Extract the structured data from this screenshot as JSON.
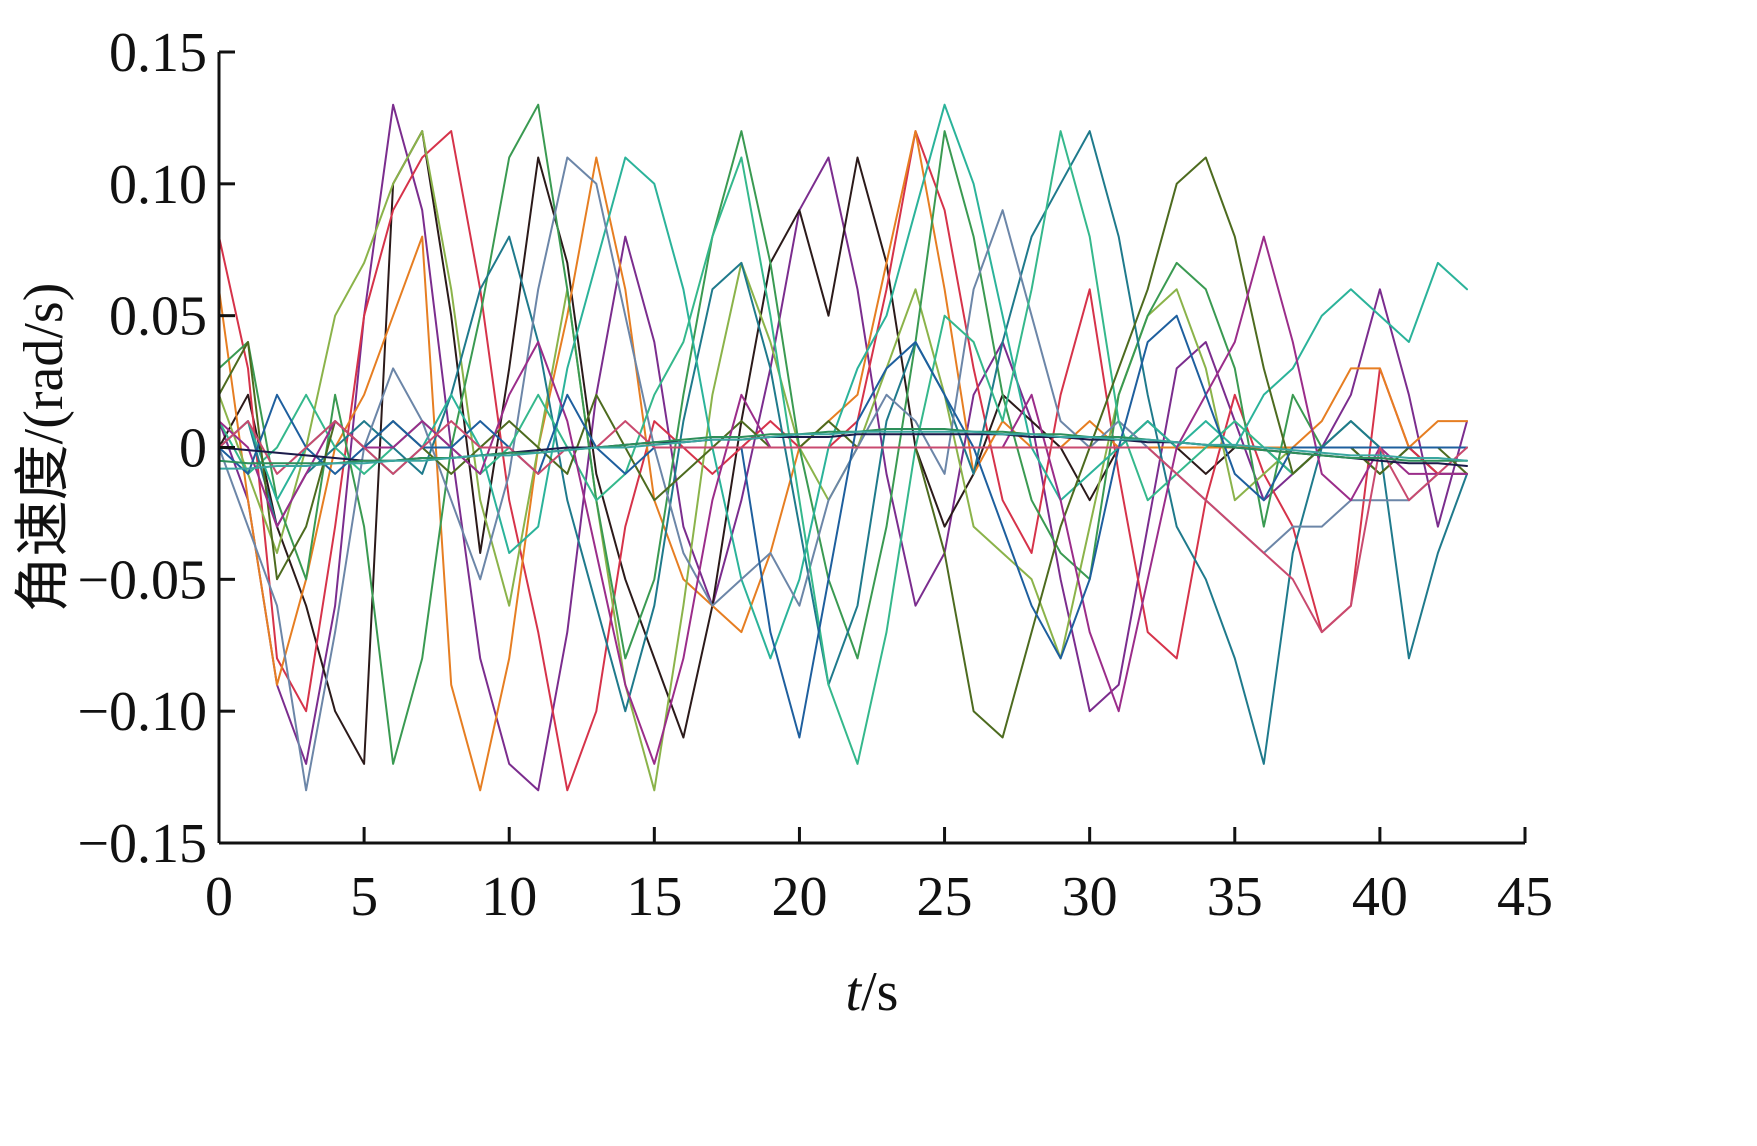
{
  "chart_data": {
    "type": "line",
    "title": "",
    "xlabel_italic": "t",
    "xlabel_rest": "/s",
    "ylabel": "角速度/(rad/s)",
    "xlim": [
      0,
      45
    ],
    "ylim": [
      -0.15,
      0.15
    ],
    "xticks": [
      0,
      5,
      10,
      15,
      20,
      25,
      30,
      35,
      40,
      45
    ],
    "xtick_labels": [
      "0",
      "5",
      "10",
      "15",
      "20",
      "25",
      "30",
      "35",
      "40",
      "45"
    ],
    "yticks": [
      -0.15,
      -0.1,
      -0.05,
      0,
      0.05,
      0.1,
      0.15
    ],
    "ytick_labels": [
      "−0.15",
      "−0.10",
      "−0.05",
      "0",
      "0.05",
      "0.10",
      "0.15"
    ],
    "grid": false,
    "legend": "none",
    "x": [
      0,
      1,
      2,
      3,
      4,
      5,
      6,
      7,
      8,
      9,
      10,
      11,
      12,
      13,
      14,
      15,
      16,
      17,
      18,
      19,
      20,
      21,
      22,
      23,
      24,
      25,
      26,
      27,
      28,
      29,
      30,
      31,
      32,
      33,
      34,
      35,
      36,
      37,
      38,
      39,
      40,
      41,
      42,
      43
    ],
    "series": [
      {
        "color": "#7b2d8e",
        "values": [
          0.01,
          -0.02,
          -0.09,
          -0.12,
          -0.06,
          0.05,
          0.13,
          0.09,
          0.0,
          -0.08,
          -0.12,
          -0.13,
          -0.07,
          0.02,
          0.08,
          0.04,
          -0.03,
          -0.06,
          -0.02,
          0.03,
          0.09,
          0.11,
          0.06,
          -0.01,
          -0.06,
          -0.04,
          0.02,
          0.04,
          0.01,
          -0.05,
          -0.1,
          -0.09,
          -0.03,
          0.03,
          0.04,
          0.01,
          -0.02,
          -0.01,
          0.0,
          0.02,
          0.06,
          0.02,
          -0.03,
          0.01
        ]
      },
      {
        "color": "#2b1a1a",
        "values": [
          0.0,
          0.02,
          -0.03,
          -0.06,
          -0.1,
          -0.12,
          0.1,
          0.12,
          0.05,
          -0.04,
          0.03,
          0.11,
          0.07,
          -0.01,
          -0.05,
          -0.08,
          -0.11,
          -0.06,
          0.01,
          0.07,
          0.09,
          0.05,
          0.11,
          0.07,
          0.0,
          -0.03,
          -0.01,
          0.02,
          0.01,
          0.0,
          -0.02,
          0.0,
          0.01,
          0.0,
          -0.01,
          0.0,
          0.0,
          -0.01,
          0.0,
          0.0,
          -0.01,
          0.0,
          -0.01,
          -0.01
        ]
      },
      {
        "color": "#d6334a",
        "values": [
          0.08,
          0.03,
          -0.08,
          -0.1,
          -0.03,
          0.05,
          0.09,
          0.11,
          0.12,
          0.06,
          -0.02,
          -0.07,
          -0.13,
          -0.1,
          -0.03,
          0.01,
          0.0,
          -0.01,
          0.0,
          0.01,
          0.0,
          0.0,
          0.01,
          0.06,
          0.12,
          0.09,
          0.03,
          -0.02,
          -0.04,
          0.02,
          0.06,
          -0.01,
          -0.07,
          -0.08,
          -0.02,
          0.02,
          -0.01,
          -0.03,
          -0.07,
          -0.06,
          0.03,
          0.0,
          -0.01,
          -0.01
        ]
      },
      {
        "color": "#e67e22",
        "values": [
          0.06,
          -0.02,
          -0.09,
          -0.05,
          0.0,
          0.02,
          0.05,
          0.08,
          -0.09,
          -0.13,
          -0.08,
          0.0,
          0.05,
          0.11,
          0.06,
          -0.02,
          -0.05,
          -0.06,
          -0.07,
          -0.04,
          0.0,
          0.01,
          0.02,
          0.07,
          0.12,
          0.06,
          -0.01,
          0.01,
          0.0,
          0.0,
          0.01,
          0.0,
          0.0,
          0.0,
          0.0,
          0.0,
          0.0,
          0.0,
          0.01,
          0.03,
          0.03,
          0.0,
          0.01,
          0.01
        ]
      },
      {
        "color": "#8bb34a",
        "values": [
          0.02,
          -0.01,
          -0.04,
          0.0,
          0.05,
          0.07,
          0.1,
          0.12,
          0.06,
          -0.02,
          -0.06,
          0.0,
          0.06,
          -0.02,
          -0.09,
          -0.13,
          -0.06,
          0.02,
          0.07,
          0.04,
          0.0,
          -0.02,
          0.0,
          0.03,
          0.06,
          0.02,
          -0.03,
          -0.04,
          -0.05,
          -0.08,
          -0.03,
          0.02,
          0.05,
          0.06,
          0.03,
          -0.02,
          -0.01,
          0.0,
          0.0,
          0.0,
          0.0,
          0.0,
          0.0,
          0.0
        ]
      },
      {
        "color": "#3a9a52",
        "values": [
          0.03,
          0.04,
          -0.02,
          -0.05,
          0.02,
          -0.03,
          -0.12,
          -0.08,
          0.0,
          0.05,
          0.11,
          0.13,
          0.06,
          -0.02,
          -0.08,
          -0.05,
          0.02,
          0.08,
          0.12,
          0.07,
          0.0,
          -0.05,
          -0.08,
          -0.03,
          0.04,
          0.12,
          0.08,
          0.02,
          -0.02,
          -0.04,
          -0.05,
          0.02,
          0.05,
          0.07,
          0.06,
          0.03,
          -0.03,
          0.02,
          0.0,
          0.01,
          0.0,
          0.0,
          0.0,
          0.0
        ]
      },
      {
        "color": "#1f7a8c",
        "values": [
          0.0,
          0.01,
          -0.03,
          -0.01,
          0.0,
          0.01,
          0.0,
          -0.01,
          0.02,
          0.06,
          0.08,
          0.04,
          -0.02,
          -0.06,
          -0.1,
          -0.06,
          0.01,
          0.06,
          0.07,
          0.03,
          -0.03,
          -0.09,
          -0.06,
          0.01,
          0.04,
          0.02,
          -0.01,
          0.04,
          0.08,
          0.1,
          0.12,
          0.08,
          0.02,
          -0.03,
          -0.05,
          -0.08,
          -0.12,
          -0.04,
          0.0,
          0.01,
          0.0,
          -0.08,
          -0.04,
          -0.01
        ]
      },
      {
        "color": "#2bb39a",
        "values": [
          0.0,
          0.01,
          -0.02,
          0.0,
          0.01,
          0.0,
          -0.01,
          0.0,
          0.02,
          0.0,
          -0.04,
          -0.03,
          0.03,
          0.07,
          0.11,
          0.1,
          0.06,
          0.0,
          -0.05,
          -0.08,
          -0.05,
          0.0,
          0.03,
          0.05,
          0.09,
          0.13,
          0.1,
          0.05,
          0.0,
          -0.02,
          -0.01,
          0.0,
          0.01,
          0.0,
          0.01,
          0.0,
          0.02,
          0.03,
          0.05,
          0.06,
          0.05,
          0.04,
          0.07,
          0.06
        ]
      },
      {
        "color": "#6c86a8",
        "values": [
          0.0,
          -0.03,
          -0.06,
          -0.13,
          -0.07,
          0.0,
          0.03,
          0.01,
          -0.02,
          -0.05,
          -0.01,
          0.06,
          0.11,
          0.1,
          0.05,
          0.0,
          -0.04,
          -0.06,
          -0.05,
          -0.04,
          -0.06,
          -0.02,
          0.0,
          0.02,
          0.01,
          -0.01,
          0.06,
          0.09,
          0.05,
          0.01,
          0.0,
          0.01,
          0.0,
          -0.01,
          -0.02,
          -0.03,
          -0.04,
          -0.03,
          -0.03,
          -0.02,
          -0.02,
          -0.02,
          -0.01,
          -0.01
        ]
      },
      {
        "color": "#35b88c",
        "values": [
          0.01,
          -0.01,
          0.0,
          0.02,
          0.0,
          -0.01,
          0.0,
          0.01,
          0.0,
          -0.01,
          0.0,
          0.02,
          0.0,
          -0.02,
          -0.01,
          0.02,
          0.04,
          0.08,
          0.11,
          0.05,
          -0.02,
          -0.09,
          -0.12,
          -0.07,
          0.0,
          0.05,
          0.04,
          0.01,
          0.06,
          0.12,
          0.08,
          0.01,
          -0.02,
          -0.01,
          0.0,
          0.01,
          0.0,
          -0.01,
          0.0,
          0.0,
          0.0,
          0.0,
          0.0,
          0.0
        ]
      },
      {
        "color": "#4d6b1f",
        "values": [
          0.02,
          0.04,
          -0.05,
          -0.03,
          0.01,
          0.0,
          0.01,
          0.0,
          -0.01,
          0.0,
          0.01,
          0.0,
          -0.01,
          0.02,
          0.0,
          -0.02,
          -0.01,
          0.0,
          0.01,
          0.0,
          0.0,
          0.01,
          0.0,
          0.0,
          0.0,
          -0.04,
          -0.1,
          -0.11,
          -0.07,
          -0.03,
          0.0,
          0.03,
          0.06,
          0.1,
          0.11,
          0.08,
          0.03,
          -0.01,
          0.0,
          0.0,
          -0.01,
          0.0,
          0.0,
          -0.01
        ]
      },
      {
        "color": "#9b2d8a",
        "values": [
          0.01,
          0.0,
          -0.03,
          -0.01,
          0.01,
          0.0,
          0.0,
          0.01,
          0.0,
          -0.01,
          0.02,
          0.04,
          0.01,
          -0.04,
          -0.09,
          -0.12,
          -0.08,
          -0.02,
          0.02,
          0.0,
          0.0,
          0.0,
          0.0,
          0.0,
          0.0,
          0.0,
          0.0,
          0.0,
          0.02,
          -0.02,
          -0.07,
          -0.1,
          -0.05,
          0.0,
          0.02,
          0.04,
          0.08,
          0.04,
          -0.01,
          -0.02,
          0.0,
          -0.01,
          -0.01,
          -0.01
        ]
      },
      {
        "color": "#1e5f9e",
        "values": [
          0.0,
          -0.01,
          0.02,
          0.0,
          -0.01,
          0.0,
          0.01,
          0.0,
          0.0,
          0.01,
          0.0,
          -0.01,
          0.02,
          0.0,
          -0.01,
          0.0,
          0.0,
          0.0,
          0.0,
          -0.07,
          -0.11,
          -0.05,
          0.01,
          0.03,
          0.04,
          0.02,
          0.0,
          -0.03,
          -0.06,
          -0.08,
          -0.05,
          0.0,
          0.04,
          0.05,
          0.02,
          -0.01,
          -0.02,
          0.0,
          0.0,
          0.0,
          0.0,
          0.0,
          0.0,
          0.0
        ]
      },
      {
        "color": "#c94a6f",
        "values": [
          0.0,
          0.01,
          -0.01,
          0.0,
          0.01,
          0.0,
          -0.01,
          0.0,
          0.01,
          0.0,
          0.0,
          -0.01,
          0.0,
          0.0,
          0.01,
          0.0,
          0.0,
          0.0,
          0.0,
          0.0,
          0.0,
          0.0,
          0.0,
          0.0,
          0.0,
          0.0,
          0.0,
          0.0,
          0.0,
          0.0,
          0.0,
          0.0,
          0.0,
          -0.01,
          -0.02,
          -0.03,
          -0.04,
          -0.05,
          -0.07,
          -0.06,
          0.0,
          -0.02,
          -0.01,
          0.0
        ]
      },
      {
        "color": "#1b1b4a",
        "values": [
          0.0,
          -0.001,
          -0.002,
          -0.003,
          -0.004,
          -0.005,
          -0.005,
          -0.004,
          -0.004,
          -0.003,
          -0.002,
          -0.001,
          0.0,
          0.0,
          0.001,
          0.002,
          0.002,
          0.003,
          0.003,
          0.004,
          0.004,
          0.004,
          0.005,
          0.005,
          0.005,
          0.005,
          0.005,
          0.005,
          0.004,
          0.004,
          0.003,
          0.003,
          0.002,
          0.002,
          0.001,
          0.0,
          -0.001,
          -0.002,
          -0.003,
          -0.004,
          -0.005,
          -0.006,
          -0.006,
          -0.007
        ]
      },
      {
        "color": "#2d8f5a",
        "values": [
          -0.005,
          -0.006,
          -0.006,
          -0.006,
          -0.006,
          -0.005,
          -0.005,
          -0.004,
          -0.004,
          -0.003,
          -0.002,
          -0.002,
          -0.001,
          0.0,
          0.001,
          0.002,
          0.003,
          0.004,
          0.004,
          0.005,
          0.005,
          0.006,
          0.006,
          0.007,
          0.007,
          0.007,
          0.006,
          0.006,
          0.005,
          0.005,
          0.004,
          0.004,
          0.003,
          0.002,
          0.001,
          0.0,
          -0.001,
          -0.002,
          -0.003,
          -0.004,
          -0.004,
          -0.005,
          -0.005,
          -0.005
        ]
      },
      {
        "color": "#3aa6a0",
        "values": [
          -0.008,
          -0.008,
          -0.007,
          -0.007,
          -0.006,
          -0.006,
          -0.005,
          -0.005,
          -0.004,
          -0.003,
          -0.003,
          -0.002,
          -0.001,
          0.0,
          0.0,
          0.001,
          0.002,
          0.003,
          0.003,
          0.004,
          0.005,
          0.005,
          0.006,
          0.006,
          0.006,
          0.006,
          0.006,
          0.005,
          0.005,
          0.004,
          0.004,
          0.003,
          0.003,
          0.002,
          0.001,
          0.001,
          0.0,
          -0.001,
          -0.002,
          -0.003,
          -0.003,
          -0.004,
          -0.004,
          -0.005
        ]
      }
    ]
  }
}
